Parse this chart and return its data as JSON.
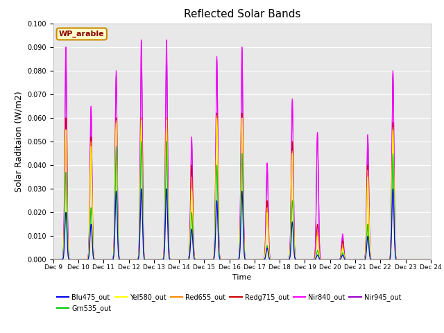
{
  "title": "Reflected Solar Bands",
  "ylabel": "Solar Raditaion (W/m2)",
  "xlabel": "Time",
  "annotation": "WP_arable",
  "ylim": [
    0,
    0.1
  ],
  "yticks": [
    0.0,
    0.01,
    0.02,
    0.03,
    0.04,
    0.05,
    0.06,
    0.07,
    0.08,
    0.09,
    0.1
  ],
  "xtick_labels": [
    "Dec 9",
    "Dec 10",
    "Dec 11",
    "Dec 12",
    "Dec 13",
    "Dec 14",
    "Dec 15",
    "Dec 16",
    "Dec 17",
    "Dec 18",
    "Dec 19",
    "Dec 20",
    "Dec 21",
    "Dec 22",
    "Dec 23",
    "Dec 24"
  ],
  "series_colors": {
    "Blu475_out": "#0000ee",
    "Grn535_out": "#00cc00",
    "Yel580_out": "#ffff00",
    "Red655_out": "#ff8800",
    "Redg715_out": "#cc0000",
    "Nir840_out": "#ff00ff",
    "Nir945_out": "#9900cc"
  },
  "background_color": "#e8e8e8",
  "fig_background": "#ffffff",
  "nir840_peaks": [
    0.09,
    0.065,
    0.08,
    0.093,
    0.093,
    0.052,
    0.086,
    0.09,
    0.041,
    0.068,
    0.054,
    0.011,
    0.053,
    0.08,
    0.0
  ],
  "nir945_peaks": [
    0.087,
    0.064,
    0.078,
    0.092,
    0.091,
    0.05,
    0.085,
    0.089,
    0.04,
    0.067,
    0.053,
    0.01,
    0.052,
    0.079,
    0.0
  ],
  "redg715_peaks": [
    0.06,
    0.052,
    0.06,
    0.06,
    0.06,
    0.04,
    0.062,
    0.062,
    0.025,
    0.05,
    0.015,
    0.008,
    0.04,
    0.058,
    0.0
  ],
  "red655_peaks": [
    0.055,
    0.05,
    0.059,
    0.06,
    0.06,
    0.035,
    0.061,
    0.06,
    0.022,
    0.046,
    0.012,
    0.006,
    0.038,
    0.056,
    0.0
  ],
  "yel580_peaks": [
    0.055,
    0.048,
    0.058,
    0.059,
    0.059,
    0.03,
    0.06,
    0.06,
    0.02,
    0.045,
    0.01,
    0.005,
    0.035,
    0.055,
    0.0
  ],
  "grn535_peaks": [
    0.037,
    0.022,
    0.048,
    0.05,
    0.05,
    0.02,
    0.04,
    0.045,
    0.006,
    0.025,
    0.004,
    0.003,
    0.015,
    0.045,
    0.0
  ],
  "blu475_peaks": [
    0.02,
    0.015,
    0.029,
    0.03,
    0.03,
    0.013,
    0.025,
    0.029,
    0.005,
    0.016,
    0.002,
    0.002,
    0.01,
    0.03,
    0.0
  ]
}
